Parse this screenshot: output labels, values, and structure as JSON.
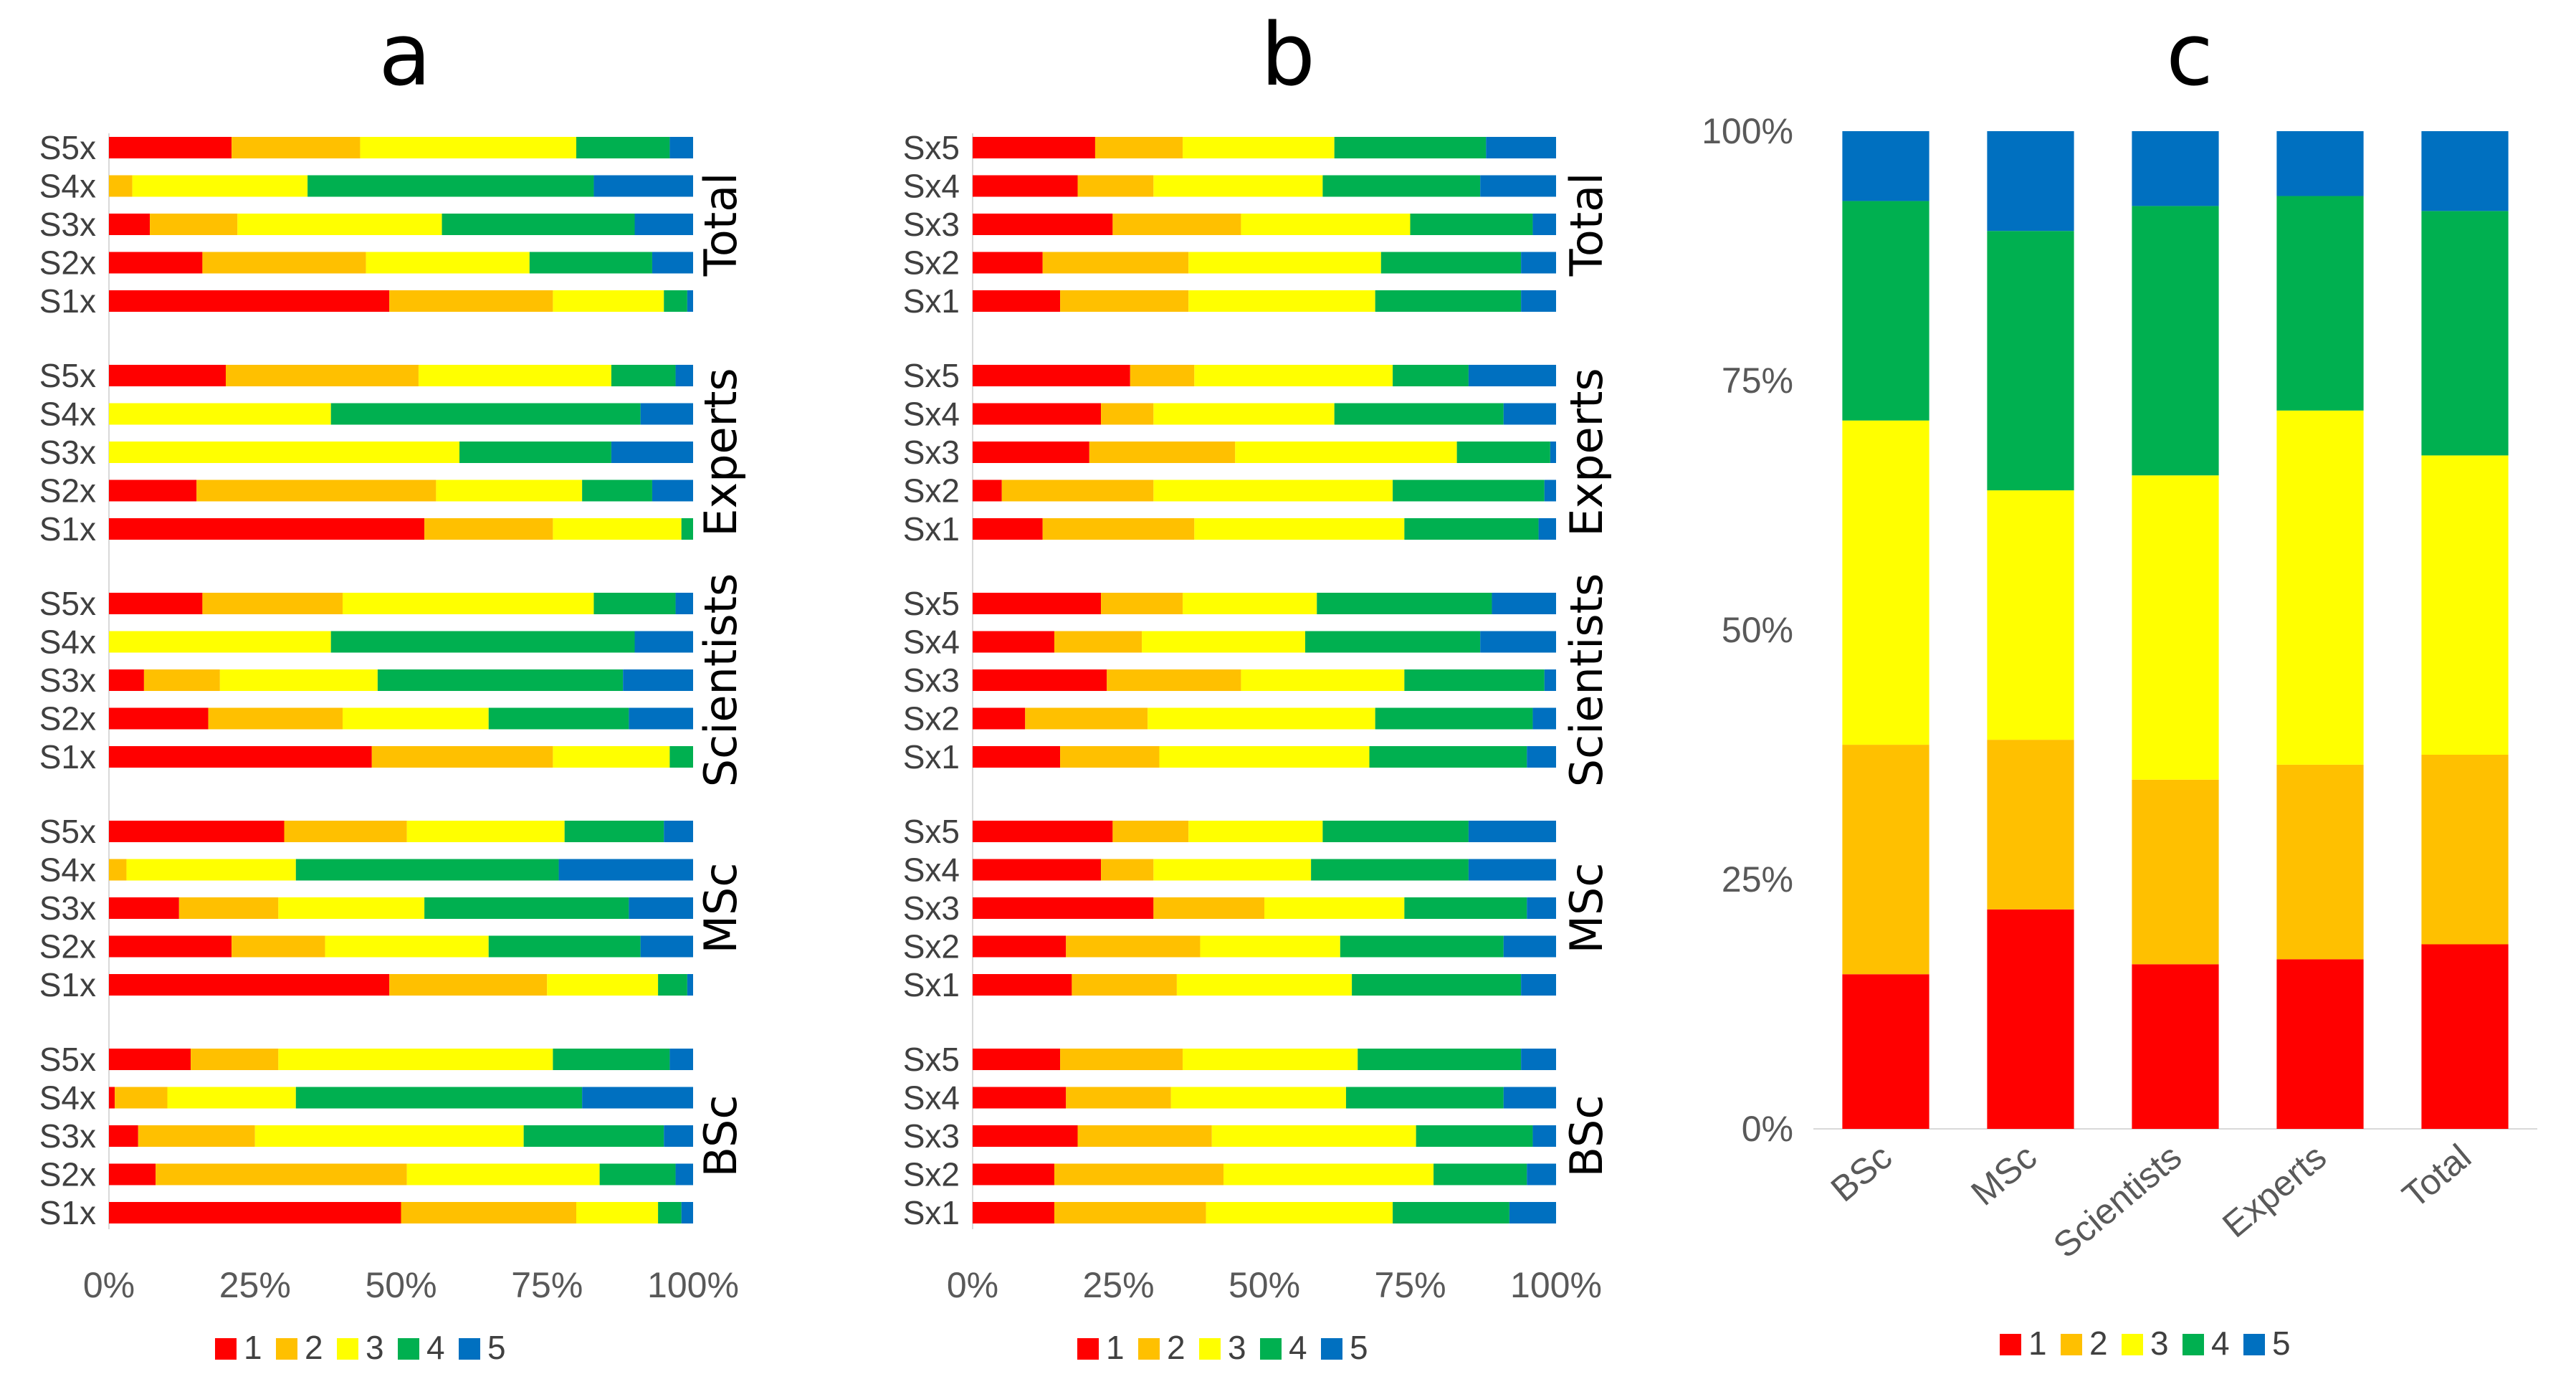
{
  "panels": [
    {
      "label": "a"
    },
    {
      "label": "b"
    },
    {
      "label": "c"
    }
  ],
  "colors": {
    "1": "#ff0000",
    "2": "#ffc000",
    "3": "#ffff00",
    "4": "#00b050",
    "5": "#0070c0",
    "tick_text": "#595959",
    "axis_line": "#d9d9d9"
  },
  "chart_data": [
    {
      "type": "bar",
      "orientation": "horizontal",
      "stacked": "percent",
      "panel": "a",
      "series_names": [
        "1",
        "2",
        "3",
        "4",
        "5"
      ],
      "x_ticks": [
        "0%",
        "25%",
        "50%",
        "75%",
        "100%"
      ],
      "xlim": [
        0,
        100
      ],
      "legend_position": "bottom",
      "groups": [
        {
          "name": "Total",
          "rows": [
            {
              "label": "S5x",
              "values": [
                21,
                22,
                37,
                16,
                4
              ]
            },
            {
              "label": "S4x",
              "values": [
                0,
                4,
                30,
                49,
                17
              ]
            },
            {
              "label": "S3x",
              "values": [
                7,
                15,
                35,
                33,
                10
              ]
            },
            {
              "label": "S2x",
              "values": [
                16,
                28,
                28,
                21,
                7
              ]
            },
            {
              "label": "S1x",
              "values": [
                48,
                28,
                19,
                4,
                1
              ]
            }
          ]
        },
        {
          "name": "Experts",
          "rows": [
            {
              "label": "S5x",
              "values": [
                20,
                33,
                33,
                11,
                3
              ]
            },
            {
              "label": "S4x",
              "values": [
                0,
                0,
                38,
                53,
                9
              ]
            },
            {
              "label": "S3x",
              "values": [
                0,
                0,
                60,
                26,
                14
              ]
            },
            {
              "label": "S2x",
              "values": [
                15,
                41,
                25,
                12,
                7
              ]
            },
            {
              "label": "S1x",
              "values": [
                54,
                22,
                22,
                2,
                0
              ]
            }
          ]
        },
        {
          "name": "Scientists",
          "rows": [
            {
              "label": "S5x",
              "values": [
                16,
                24,
                43,
                14,
                3
              ]
            },
            {
              "label": "S4x",
              "values": [
                0,
                0,
                38,
                52,
                10
              ]
            },
            {
              "label": "S3x",
              "values": [
                6,
                13,
                27,
                42,
                12
              ]
            },
            {
              "label": "S2x",
              "values": [
                17,
                23,
                25,
                24,
                11
              ]
            },
            {
              "label": "S1x",
              "values": [
                45,
                31,
                20,
                4,
                0
              ]
            }
          ]
        },
        {
          "name": "MSc",
          "rows": [
            {
              "label": "S5x",
              "values": [
                30,
                21,
                27,
                17,
                5
              ]
            },
            {
              "label": "S4x",
              "values": [
                0,
                3,
                29,
                45,
                23
              ]
            },
            {
              "label": "S3x",
              "values": [
                12,
                17,
                25,
                35,
                11
              ]
            },
            {
              "label": "S2x",
              "values": [
                21,
                16,
                28,
                26,
                9
              ]
            },
            {
              "label": "S1x",
              "values": [
                48,
                27,
                19,
                5,
                1
              ]
            }
          ]
        },
        {
          "name": "BSc",
          "rows": [
            {
              "label": "S5x",
              "values": [
                14,
                15,
                47,
                20,
                4
              ]
            },
            {
              "label": "S4x",
              "values": [
                1,
                9,
                22,
                49,
                19
              ]
            },
            {
              "label": "S3x",
              "values": [
                5,
                20,
                46,
                24,
                5
              ]
            },
            {
              "label": "S2x",
              "values": [
                8,
                43,
                33,
                13,
                3
              ]
            },
            {
              "label": "S1x",
              "values": [
                50,
                30,
                14,
                4,
                2
              ]
            }
          ]
        }
      ]
    },
    {
      "type": "bar",
      "orientation": "horizontal",
      "stacked": "percent",
      "panel": "b",
      "series_names": [
        "1",
        "2",
        "3",
        "4",
        "5"
      ],
      "x_ticks": [
        "0%",
        "25%",
        "50%",
        "75%",
        "100%"
      ],
      "xlim": [
        0,
        100
      ],
      "legend_position": "bottom",
      "groups": [
        {
          "name": "Total",
          "rows": [
            {
              "label": "Sx5",
              "values": [
                21,
                15,
                26,
                26,
                12
              ]
            },
            {
              "label": "Sx4",
              "values": [
                18,
                13,
                29,
                27,
                13
              ]
            },
            {
              "label": "Sx3",
              "values": [
                24,
                22,
                29,
                21,
                4
              ]
            },
            {
              "label": "Sx2",
              "values": [
                12,
                25,
                33,
                24,
                6
              ]
            },
            {
              "label": "Sx1",
              "values": [
                15,
                22,
                32,
                25,
                6
              ]
            }
          ]
        },
        {
          "name": "Experts",
          "rows": [
            {
              "label": "Sx5",
              "values": [
                27,
                11,
                34,
                13,
                15
              ]
            },
            {
              "label": "Sx4",
              "values": [
                22,
                9,
                31,
                29,
                9
              ]
            },
            {
              "label": "Sx3",
              "values": [
                20,
                25,
                38,
                16,
                1
              ]
            },
            {
              "label": "Sx2",
              "values": [
                5,
                26,
                41,
                26,
                2
              ]
            },
            {
              "label": "Sx1",
              "values": [
                12,
                26,
                36,
                23,
                3
              ]
            }
          ]
        },
        {
          "name": "Scientists",
          "rows": [
            {
              "label": "Sx5",
              "values": [
                22,
                14,
                23,
                30,
                11
              ]
            },
            {
              "label": "Sx4",
              "values": [
                14,
                15,
                28,
                30,
                13
              ]
            },
            {
              "label": "Sx3",
              "values": [
                23,
                23,
                28,
                24,
                2
              ]
            },
            {
              "label": "Sx2",
              "values": [
                9,
                21,
                39,
                27,
                4
              ]
            },
            {
              "label": "Sx1",
              "values": [
                15,
                17,
                36,
                27,
                5
              ]
            }
          ]
        },
        {
          "name": "MSc",
          "rows": [
            {
              "label": "Sx5",
              "values": [
                24,
                13,
                23,
                25,
                15
              ]
            },
            {
              "label": "Sx4",
              "values": [
                22,
                9,
                27,
                27,
                15
              ]
            },
            {
              "label": "Sx3",
              "values": [
                31,
                19,
                24,
                21,
                5
              ]
            },
            {
              "label": "Sx2",
              "values": [
                16,
                23,
                24,
                28,
                9
              ]
            },
            {
              "label": "Sx1",
              "values": [
                17,
                18,
                30,
                29,
                6
              ]
            }
          ]
        },
        {
          "name": "BSc",
          "rows": [
            {
              "label": "Sx5",
              "values": [
                15,
                21,
                30,
                28,
                6
              ]
            },
            {
              "label": "Sx4",
              "values": [
                16,
                18,
                30,
                27,
                9
              ]
            },
            {
              "label": "Sx3",
              "values": [
                18,
                23,
                35,
                20,
                4
              ]
            },
            {
              "label": "Sx2",
              "values": [
                14,
                29,
                36,
                16,
                5
              ]
            },
            {
              "label": "Sx1",
              "values": [
                14,
                26,
                32,
                20,
                8
              ]
            }
          ]
        }
      ]
    },
    {
      "type": "bar",
      "orientation": "vertical",
      "stacked": "percent",
      "panel": "c",
      "categories": [
        "BSc",
        "MSc",
        "Scientists",
        "Experts",
        "Total"
      ],
      "series": [
        {
          "name": "1",
          "values": [
            15.5,
            22,
            16.5,
            17,
            18.5
          ]
        },
        {
          "name": "2",
          "values": [
            23,
            17,
            18.5,
            19.5,
            19
          ]
        },
        {
          "name": "3",
          "values": [
            32.5,
            25,
            30.5,
            35.5,
            30
          ]
        },
        {
          "name": "4",
          "values": [
            22,
            26,
            27,
            21.5,
            24.5
          ]
        },
        {
          "name": "5",
          "values": [
            7,
            10,
            7.5,
            6.5,
            8
          ]
        }
      ],
      "y_ticks": [
        "0%",
        "25%",
        "50%",
        "75%",
        "100%"
      ],
      "ylim": [
        0,
        100
      ],
      "legend_position": "bottom"
    }
  ]
}
